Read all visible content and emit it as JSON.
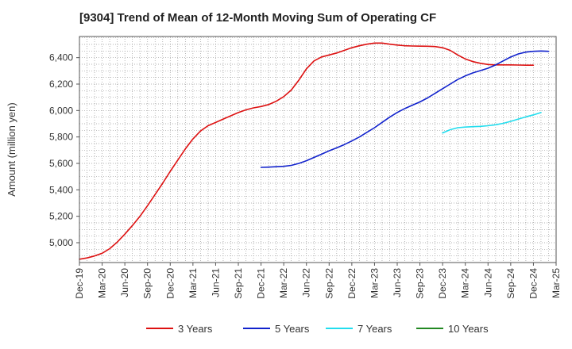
{
  "chart_data": {
    "type": "line",
    "title": "[9304]  Trend of Mean of 12-Month Moving Sum of Operating CF",
    "xlabel": "",
    "ylabel": "Amount (million yen)",
    "ylim": [
      4850,
      6560
    ],
    "yticks": [
      5000,
      5200,
      5400,
      5600,
      5800,
      6000,
      6200,
      6400
    ],
    "ytick_labels": [
      "5,000",
      "5,200",
      "5,400",
      "5,600",
      "5,800",
      "6,000",
      "6,200",
      "6,400"
    ],
    "x_tick_labels": [
      "Dec-19",
      "Mar-20",
      "Jun-20",
      "Sep-20",
      "Dec-20",
      "Mar-21",
      "Jun-21",
      "Sep-21",
      "Dec-21",
      "Mar-22",
      "Jun-22",
      "Sep-22",
      "Dec-22",
      "Mar-23",
      "Jun-23",
      "Sep-23",
      "Dec-23",
      "Mar-24",
      "Jun-24",
      "Sep-24",
      "Dec-24",
      "Mar-25"
    ],
    "grid": true,
    "legend_position": "bottom",
    "series": [
      {
        "name": "3 Years",
        "color": "#dd1111",
        "start_month": 0,
        "values": [
          4875,
          4885,
          4900,
          4920,
          4955,
          5005,
          5065,
          5130,
          5200,
          5280,
          5365,
          5450,
          5540,
          5625,
          5710,
          5785,
          5845,
          5885,
          5910,
          5935,
          5960,
          5985,
          6005,
          6020,
          6030,
          6045,
          6070,
          6105,
          6155,
          6230,
          6315,
          6375,
          6405,
          6420,
          6435,
          6455,
          6475,
          6490,
          6502,
          6510,
          6510,
          6502,
          6495,
          6490,
          6488,
          6487,
          6486,
          6484,
          6475,
          6455,
          6420,
          6390,
          6370,
          6357,
          6348,
          6345,
          6345,
          6345,
          6344,
          6343,
          6343
        ]
      },
      {
        "name": "5 Years",
        "color": "#1122cc",
        "start_month": 24,
        "values": [
          5570,
          5572,
          5575,
          5578,
          5585,
          5600,
          5620,
          5645,
          5670,
          5695,
          5718,
          5742,
          5770,
          5800,
          5835,
          5870,
          5910,
          5950,
          5985,
          6015,
          6040,
          6065,
          6095,
          6130,
          6165,
          6200,
          6235,
          6262,
          6285,
          6302,
          6320,
          6345,
          6375,
          6405,
          6428,
          6442,
          6448,
          6450,
          6448
        ]
      },
      {
        "name": "7 Years",
        "color": "#22ddee",
        "start_month": 48,
        "values": [
          5830,
          5855,
          5870,
          5875,
          5878,
          5880,
          5885,
          5892,
          5903,
          5918,
          5935,
          5952,
          5967,
          5985
        ]
      },
      {
        "name": "10 Years",
        "color": "#228822",
        "start_month": 60,
        "values": []
      }
    ]
  }
}
